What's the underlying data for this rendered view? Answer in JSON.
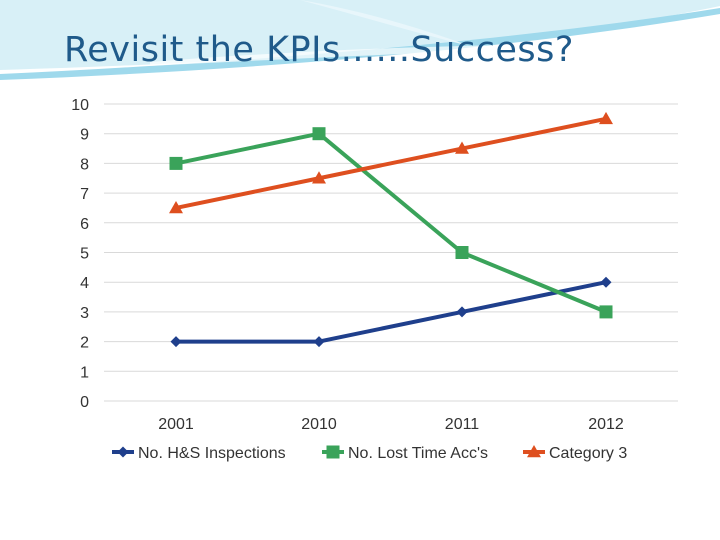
{
  "slide": {
    "title": "Revisit the KPIs......Success?"
  },
  "colors": {
    "title": "#1f5a8a",
    "swoosh_light": "#bfe6f2",
    "swoosh_mid": "#7fcde6",
    "grid": "#d9d9d9"
  },
  "chart_data": {
    "type": "line",
    "categories": [
      "2001",
      "2010",
      "2011",
      "2012"
    ],
    "ylim": [
      0,
      10
    ],
    "yticks": [
      "0",
      "1",
      "2",
      "3",
      "4",
      "5",
      "6",
      "7",
      "8",
      "9",
      "10"
    ],
    "grid": true,
    "legend_position": "bottom",
    "title": "",
    "xlabel": "",
    "ylabel": "",
    "series": [
      {
        "name": "No. H&S Inspections",
        "values": [
          2,
          2,
          3,
          4
        ],
        "color": "#1f3f8c",
        "marker": "diamond"
      },
      {
        "name": "No. Lost Time Acc's",
        "values": [
          8,
          9,
          5,
          3
        ],
        "color": "#3aa35a",
        "marker": "square"
      },
      {
        "name": "Category 3",
        "values": [
          6.5,
          7.5,
          8.5,
          9.5
        ],
        "color": "#de4f1f",
        "marker": "triangle"
      }
    ]
  }
}
